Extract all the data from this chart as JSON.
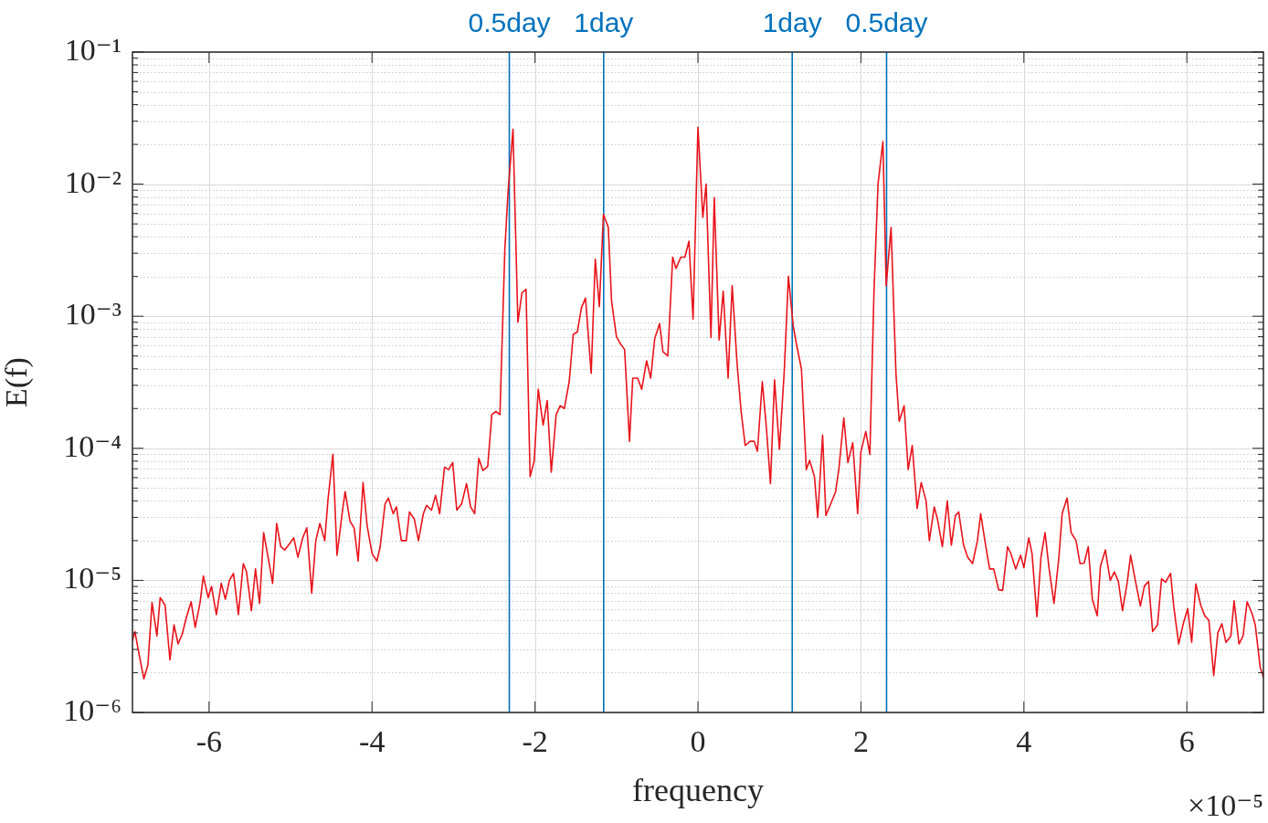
{
  "chart_data": {
    "type": "line",
    "xlabel": "frequency",
    "ylabel": "E(f)",
    "log": "y",
    "grid": true,
    "legend": false,
    "annotations": [
      "×10⁻⁵"
    ],
    "xlim": [
      -6.94,
      6.94
    ],
    "xticks": [
      -6,
      -4,
      -2,
      0,
      2,
      4,
      6
    ],
    "ylim": [
      1e-06,
      0.1
    ],
    "yticks": [
      {
        "value": 1e-06,
        "label": "10⁻⁶"
      },
      {
        "value": 2e-06,
        "label": null
      },
      {
        "value": 3e-06,
        "label": null
      },
      {
        "value": 4e-06,
        "label": null
      },
      {
        "value": 5e-06,
        "label": null
      },
      {
        "value": 6e-06,
        "label": null
      },
      {
        "value": 7e-06,
        "label": null
      },
      {
        "value": 8e-06,
        "label": null
      },
      {
        "value": 9e-06,
        "label": null
      },
      {
        "value": 1e-05,
        "label": "10⁻⁵"
      },
      {
        "value": 2e-05,
        "label": null
      },
      {
        "value": 3e-05,
        "label": null
      },
      {
        "value": 4e-05,
        "label": null
      },
      {
        "value": 5e-05,
        "label": null
      },
      {
        "value": 6e-05,
        "label": null
      },
      {
        "value": 7e-05,
        "label": null
      },
      {
        "value": 8e-05,
        "label": null
      },
      {
        "value": 9e-05,
        "label": null
      },
      {
        "value": 0.0001,
        "label": "10⁻⁴"
      },
      {
        "value": 0.0002,
        "label": null
      },
      {
        "value": 0.0003,
        "label": null
      },
      {
        "value": 0.0004,
        "label": null
      },
      {
        "value": 0.0005,
        "label": null
      },
      {
        "value": 0.0006,
        "label": null
      },
      {
        "value": 0.0007,
        "label": null
      },
      {
        "value": 0.0008,
        "label": null
      },
      {
        "value": 0.0009,
        "label": null
      },
      {
        "value": 0.001,
        "label": "10⁻³"
      },
      {
        "value": 0.002,
        "label": null
      },
      {
        "value": 0.003,
        "label": null
      },
      {
        "value": 0.004,
        "label": null
      },
      {
        "value": 0.005,
        "label": null
      },
      {
        "value": 0.006,
        "label": null
      },
      {
        "value": 0.007,
        "label": null
      },
      {
        "value": 0.008,
        "label": null
      },
      {
        "value": 0.009,
        "label": null
      },
      {
        "value": 0.01,
        "label": "10⁻²"
      },
      {
        "value": 0.02,
        "label": null
      },
      {
        "value": 0.03,
        "label": null
      },
      {
        "value": 0.04,
        "label": null
      },
      {
        "value": 0.05,
        "label": null
      },
      {
        "value": 0.06,
        "label": null
      },
      {
        "value": 0.07,
        "label": null
      },
      {
        "value": 0.08,
        "label": null
      },
      {
        "value": 0.09,
        "label": null
      },
      {
        "value": 0.1,
        "label": "10⁻¹"
      }
    ],
    "ref_lines": [
      {
        "axis": "x",
        "value": -2.315,
        "label": "0.5day",
        "color": "#0072bd"
      },
      {
        "axis": "x",
        "value": -1.157,
        "label": "1day",
        "color": "#0072bd"
      },
      {
        "axis": "x",
        "value": 1.157,
        "label": "1day",
        "color": "#0072bd"
      },
      {
        "axis": "x",
        "value": 2.315,
        "label": "0.5day",
        "color": "#0072bd"
      }
    ],
    "x": [
      -6.94,
      -6.91,
      -6.87,
      -6.8,
      -6.75,
      -6.7,
      -6.64,
      -6.6,
      -6.54,
      -6.48,
      -6.43,
      -6.38,
      -6.33,
      -6.28,
      -6.22,
      -6.17,
      -6.11,
      -6.07,
      -6.01,
      -5.97,
      -5.91,
      -5.85,
      -5.8,
      -5.75,
      -5.7,
      -5.64,
      -5.58,
      -5.54,
      -5.48,
      -5.43,
      -5.38,
      -5.33,
      -5.27,
      -5.22,
      -5.17,
      -5.12,
      -5.07,
      -5.01,
      -4.96,
      -4.91,
      -4.85,
      -4.8,
      -4.74,
      -4.69,
      -4.64,
      -4.58,
      -4.54,
      -4.48,
      -4.43,
      -4.37,
      -4.33,
      -4.27,
      -4.22,
      -4.17,
      -4.11,
      -4.06,
      -4.0,
      -3.94,
      -3.9,
      -3.84,
      -3.8,
      -3.74,
      -3.7,
      -3.64,
      -3.58,
      -3.54,
      -3.48,
      -3.43,
      -3.37,
      -3.33,
      -3.27,
      -3.22,
      -3.17,
      -3.11,
      -3.06,
      -3.01,
      -2.96,
      -2.9,
      -2.84,
      -2.79,
      -2.74,
      -2.69,
      -2.64,
      -2.58,
      -2.53,
      -2.48,
      -2.43,
      -2.37,
      -2.33,
      -2.27,
      -2.21,
      -2.16,
      -2.11,
      -2.06,
      -2.01,
      -1.96,
      -1.9,
      -1.85,
      -1.8,
      -1.74,
      -1.69,
      -1.64,
      -1.58,
      -1.53,
      -1.48,
      -1.43,
      -1.38,
      -1.31,
      -1.26,
      -1.21,
      -1.16,
      -1.1,
      -1.06,
      -1.0,
      -0.96,
      -0.9,
      -0.84,
      -0.8,
      -0.74,
      -0.69,
      -0.63,
      -0.58,
      -0.53,
      -0.47,
      -0.43,
      -0.37,
      -0.31,
      -0.27,
      -0.21,
      -0.16,
      -0.11,
      -0.06,
      0,
      0.06,
      0.1,
      0.16,
      0.2,
      0.26,
      0.31,
      0.37,
      0.42,
      0.48,
      0.53,
      0.58,
      0.64,
      0.69,
      0.73,
      0.79,
      0.84,
      0.89,
      0.94,
      1.0,
      1.06,
      1.11,
      1.17,
      1.21,
      1.27,
      1.33,
      1.37,
      1.43,
      1.47,
      1.53,
      1.57,
      1.63,
      1.69,
      1.73,
      1.79,
      1.84,
      1.9,
      1.96,
      2.0,
      2.06,
      2.11,
      2.16,
      2.21,
      2.27,
      2.31,
      2.37,
      2.43,
      2.47,
      2.53,
      2.58,
      2.63,
      2.69,
      2.74,
      2.8,
      2.84,
      2.9,
      2.94,
      3.0,
      3.06,
      3.11,
      3.16,
      3.2,
      3.26,
      3.31,
      3.37,
      3.43,
      3.47,
      3.53,
      3.58,
      3.63,
      3.69,
      3.74,
      3.8,
      3.84,
      3.9,
      3.96,
      4.0,
      4.06,
      4.1,
      4.16,
      4.21,
      4.26,
      4.31,
      4.37,
      4.43,
      4.47,
      4.53,
      4.58,
      4.64,
      4.69,
      4.74,
      4.79,
      4.84,
      4.9,
      4.94,
      5.0,
      5.06,
      5.11,
      5.16,
      5.21,
      5.27,
      5.31,
      5.37,
      5.43,
      5.48,
      5.53,
      5.58,
      5.64,
      5.69,
      5.74,
      5.8,
      5.84,
      5.9,
      5.96,
      6.01,
      6.06,
      6.11,
      6.17,
      6.22,
      6.27,
      6.33,
      6.38,
      6.43,
      6.48,
      6.54,
      6.58,
      6.64,
      6.69,
      6.74,
      6.8,
      6.84,
      6.9,
      6.94
    ],
    "series": [
      {
        "color": "#e8141b",
        "values": [
          3.5e-06,
          4.1e-06,
          3e-06,
          1.8e-06,
          2.3e-06,
          6.8e-06,
          3.8e-06,
          7.4e-06,
          6.5e-06,
          2.5e-06,
          4.6e-06,
          3.3e-06,
          3.9e-06,
          5.2e-06,
          6.9e-06,
          4.4e-06,
          6.8e-06,
          1.08e-05,
          7.4e-06,
          9e-06,
          5.5e-06,
          9.5e-06,
          7.2e-06,
          1e-05,
          1.13e-05,
          5.5e-06,
          1.34e-05,
          1.16e-05,
          5.9e-06,
          1.22e-05,
          6.7e-06,
          2.3e-05,
          1.43e-05,
          9.5e-06,
          2.7e-05,
          1.8e-05,
          1.7e-05,
          1.9e-05,
          2.1e-05,
          1.5e-05,
          2.1e-05,
          2.5e-05,
          8e-06,
          2e-05,
          2.7e-05,
          2e-05,
          4.1e-05,
          9e-05,
          1.55e-05,
          3.1e-05,
          4.7e-05,
          2.8e-05,
          2.5e-05,
          1.4e-05,
          5.5e-05,
          2.6e-05,
          1.6e-05,
          1.4e-05,
          1.8e-05,
          3.8e-05,
          4.2e-05,
          3.2e-05,
          3.6e-05,
          2e-05,
          2e-05,
          3.3e-05,
          2.9e-05,
          2e-05,
          3.2e-05,
          3.7e-05,
          3.4e-05,
          4.4e-05,
          3.2e-05,
          7.2e-05,
          6.9e-05,
          7.8e-05,
          3.4e-05,
          3.8e-05,
          5.4e-05,
          3.6e-05,
          3.2e-05,
          8.4e-05,
          6.8e-05,
          7.3e-05,
          0.00018,
          0.00019,
          0.00018,
          0.0032,
          0.0088,
          0.026,
          0.0009,
          0.0015,
          0.0016,
          6.1e-05,
          8e-05,
          0.00028,
          0.00015,
          0.00023,
          6.6e-05,
          0.00018,
          0.00021,
          0.0002,
          0.00032,
          0.00073,
          0.00076,
          0.00116,
          0.00137,
          0.00037,
          0.0027,
          0.00118,
          0.0059,
          0.0047,
          0.0013,
          0.0007,
          0.00063,
          0.00056,
          0.000113,
          0.00034,
          0.00034,
          0.00028,
          0.00046,
          0.00034,
          0.00068,
          0.00088,
          0.00054,
          0.0005,
          0.0028,
          0.0023,
          0.0028,
          0.0028,
          0.0037,
          0.00095,
          0.027,
          0.0056,
          0.01,
          0.00069,
          0.0079,
          0.00066,
          0.00155,
          0.00034,
          0.0017,
          0.00044,
          0.00019,
          0.000105,
          0.000113,
          0.000113,
          9.5e-05,
          0.00032,
          0.000143,
          5.4e-05,
          0.00033,
          9.8e-05,
          0.00039,
          0.002,
          0.00084,
          0.00061,
          0.0004,
          6.9e-05,
          8.1e-05,
          6.1e-05,
          3e-05,
          0.000126,
          3.1e-05,
          3.8e-05,
          4.7e-05,
          7e-05,
          0.00017,
          7.8e-05,
          0.00011,
          3.2e-05,
          9.4e-05,
          0.000134,
          9e-05,
          0.0015,
          0.01,
          0.021,
          0.0017,
          0.0047,
          0.00037,
          0.00016,
          0.00021,
          6.9e-05,
          0.000105,
          3.5e-05,
          5.5e-05,
          4e-05,
          2e-05,
          3.6e-05,
          2.9e-05,
          1.8e-05,
          4e-05,
          1.85e-05,
          3.1e-05,
          3.3e-05,
          1.85e-05,
          1.5e-05,
          1.34e-05,
          2e-05,
          3.2e-05,
          1.85e-05,
          1.22e-05,
          1.22e-05,
          8.5e-06,
          8.4e-06,
          1.8e-05,
          1.6e-05,
          1.22e-05,
          1.55e-05,
          1.25e-05,
          2.1e-05,
          1.6e-05,
          5.3e-06,
          1.5e-05,
          2.3e-05,
          1.22e-05,
          6.7e-06,
          1.5e-05,
          3.2e-05,
          4.2e-05,
          2.3e-05,
          2e-05,
          1.34e-05,
          1.35e-05,
          1.8e-05,
          7.2e-06,
          5.4e-06,
          1.28e-05,
          1.7e-05,
          1e-05,
          1.16e-05,
          9.8e-06,
          5.9e-06,
          9.8e-06,
          1.55e-05,
          9.8e-06,
          6.4e-06,
          9.1e-06,
          9.8e-06,
          4.1e-06,
          4.6e-06,
          1.03e-05,
          9.7e-06,
          1.13e-05,
          6.3e-06,
          3.3e-06,
          4.8e-06,
          6.1e-06,
          3.4e-06,
          9.4e-06,
          6.5e-06,
          5.4e-06,
          5e-06,
          1.9e-06,
          4e-06,
          4.7e-06,
          3.4e-06,
          3.8e-06,
          7e-06,
          3.3e-06,
          3.8e-06,
          6.9e-06,
          5.6e-06,
          4.6e-06,
          2.2e-06,
          1.85e-06
        ]
      }
    ]
  }
}
